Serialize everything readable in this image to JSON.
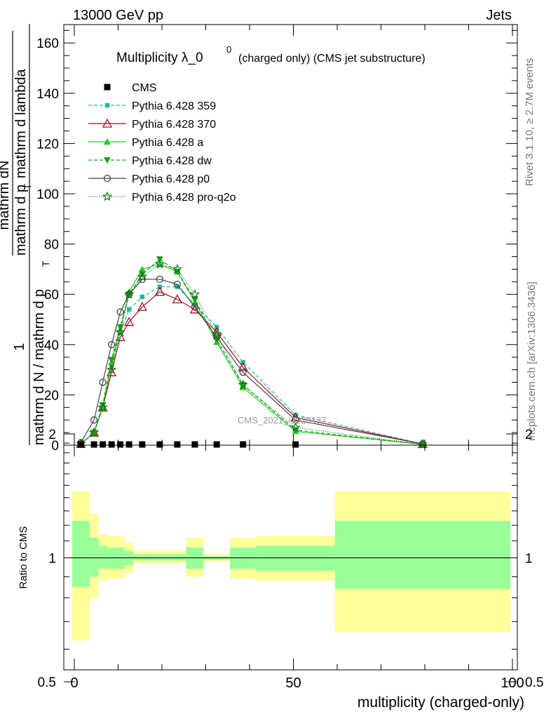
{
  "header": {
    "left": "13000 GeV pp",
    "right": "Jets"
  },
  "side_labels": {
    "rivet": "Rivet 3.1.10, ≥ 2.7M events",
    "mcplots": "mcplots.cern.ch [arXiv:1306.3436]"
  },
  "watermark": "CMS_2021_I1920187",
  "chart_data": {
    "type": "line",
    "title": "Multiplicity λ_0⁰",
    "title_main": "Multiplicity λ_0",
    "title_sup": "0",
    "title_sub": "(charged only) (CMS jet substructure)",
    "ylabel_num": "mathrm dN",
    "ylabel_frac": "1",
    "ylabel_den_main": "mathrm d p",
    "ylabel_den_rest": "mathrm d lambda",
    "ylabel_pre": "mathrm d N / mathrm d p",
    "ylabel_sub": "T",
    "ratio_ylabel": "Ratio to CMS",
    "xlabel": "multiplicity (charged-only)",
    "xlim": [
      -2,
      100
    ],
    "ylim": [
      0,
      167
    ],
    "x_ticks": [
      0,
      50,
      100
    ],
    "y_ticks": [
      0,
      20,
      40,
      60,
      80,
      100,
      120,
      140,
      160
    ],
    "ratio_ylim": [
      0.4,
      2.35
    ],
    "ratio_ticks": [
      "0.5",
      "1",
      "2"
    ],
    "legend_position": "top-left",
    "cms": {
      "name": "CMS",
      "x": [
        1.5,
        4.5,
        6.5,
        8.5,
        10.5,
        12.5,
        15.5,
        19.5,
        23.5,
        27.5,
        32.5,
        38.5,
        50.5
      ],
      "y": [
        0,
        0,
        0,
        0,
        0,
        0,
        0,
        0,
        0,
        0,
        0,
        0,
        0
      ]
    },
    "series": [
      {
        "name": "Pythia 6.428 359",
        "color": "#1db89c",
        "dash": "5,3",
        "marker": "square",
        "x": [
          1.5,
          4.5,
          6.5,
          8.5,
          10.5,
          12.5,
          15.5,
          19.5,
          23.5,
          27.5,
          32.5,
          38.5,
          50.5,
          79.5
        ],
        "y": [
          0.5,
          5,
          16,
          32,
          45,
          54,
          59,
          63,
          63,
          56,
          47,
          33,
          12,
          0.5
        ]
      },
      {
        "name": "Pythia 6.428 370",
        "color": "#a01020",
        "dash": "",
        "marker": "triangle-open",
        "x": [
          1.5,
          4.5,
          6.5,
          8.5,
          10.5,
          12.5,
          15.5,
          19.5,
          23.5,
          27.5,
          32.5,
          38.5,
          50.5,
          79.5
        ],
        "y": [
          0.5,
          5,
          15,
          29,
          43,
          49,
          55,
          61,
          58,
          54,
          45,
          31,
          11,
          0.5
        ]
      },
      {
        "name": "Pythia 6.428 a",
        "color": "#22cc22",
        "dash": "",
        "marker": "triangle",
        "x": [
          1.5,
          4.5,
          6.5,
          8.5,
          10.5,
          12.5,
          15.5,
          19.5,
          23.5,
          27.5,
          32.5,
          38.5,
          50.5,
          79.5
        ],
        "y": [
          0.5,
          5,
          15,
          33,
          46,
          61,
          70,
          72,
          69,
          57,
          41,
          23,
          5.5,
          0.3
        ]
      },
      {
        "name": "Pythia 6.428 dw",
        "color": "#15a015",
        "dash": "5,3",
        "marker": "triangle-down",
        "x": [
          1.5,
          4.5,
          6.5,
          8.5,
          10.5,
          12.5,
          15.5,
          19.5,
          23.5,
          27.5,
          32.5,
          38.5,
          50.5,
          79.5
        ],
        "y": [
          0.5,
          5,
          16,
          34,
          47,
          60,
          68,
          74,
          69,
          58,
          42,
          24,
          6,
          0.3
        ]
      },
      {
        "name": "Pythia 6.428 p0",
        "color": "#444444",
        "dash": "",
        "marker": "circle-open",
        "x": [
          1.5,
          4.5,
          6.5,
          8.5,
          10.5,
          12.5,
          15.5,
          19.5,
          23.5,
          27.5,
          32.5,
          38.5,
          50.5,
          79.5
        ],
        "y": [
          1,
          10,
          25,
          40,
          53,
          60,
          66,
          66,
          64,
          55,
          43,
          29,
          10,
          0.5
        ]
      },
      {
        "name": "Pythia 6.428 pro-q2o",
        "color": "#137313",
        "dash": "1,2",
        "marker": "star",
        "x": [
          1.5,
          4.5,
          6.5,
          8.5,
          10.5,
          12.5,
          15.5,
          19.5,
          23.5,
          27.5,
          32.5,
          38.5,
          50.5,
          79.5
        ],
        "y": [
          0.5,
          5,
          15,
          30,
          45,
          60,
          67,
          72,
          70,
          60,
          44,
          24,
          7,
          0.3
        ]
      }
    ],
    "ratio_bands": [
      {
        "x0": -0.5,
        "x1": 3.5,
        "yellow": [
          0.63,
          1.45
        ],
        "green": [
          0.85,
          1.23
        ]
      },
      {
        "x0": 3.5,
        "x1": 5.5,
        "yellow": [
          0.8,
          1.28
        ],
        "green": [
          0.9,
          1.12
        ]
      },
      {
        "x0": 5.5,
        "x1": 7.5,
        "yellow": [
          0.88,
          1.14
        ],
        "green": [
          0.94,
          1.07
        ]
      },
      {
        "x0": 7.5,
        "x1": 11.5,
        "yellow": [
          0.89,
          1.13
        ],
        "green": [
          0.94,
          1.06
        ]
      },
      {
        "x0": 11.5,
        "x1": 13.5,
        "yellow": [
          0.92,
          1.09
        ],
        "green": [
          0.96,
          1.04
        ]
      },
      {
        "x0": 13.5,
        "x1": 17.5,
        "yellow": [
          0.97,
          1.04
        ],
        "green": [
          0.985,
          1.02
        ]
      },
      {
        "x0": 17.5,
        "x1": 25.5,
        "yellow": [
          0.97,
          1.04
        ],
        "green": [
          0.985,
          1.02
        ]
      },
      {
        "x0": 25.5,
        "x1": 29.5,
        "yellow": [
          0.9,
          1.12
        ],
        "green": [
          0.94,
          1.06
        ]
      },
      {
        "x0": 29.5,
        "x1": 35.5,
        "yellow": [
          0.98,
          1.02
        ],
        "green": [
          0.99,
          1.01
        ]
      },
      {
        "x0": 35.5,
        "x1": 41.5,
        "yellow": [
          0.89,
          1.12
        ],
        "green": [
          0.94,
          1.06
        ]
      },
      {
        "x0": 41.5,
        "x1": 59.5,
        "yellow": [
          0.88,
          1.13
        ],
        "green": [
          0.93,
          1.07
        ]
      },
      {
        "x0": 59.5,
        "x1": 99.5,
        "yellow": [
          0.66,
          1.45
        ],
        "green": [
          0.84,
          1.23
        ]
      }
    ]
  }
}
